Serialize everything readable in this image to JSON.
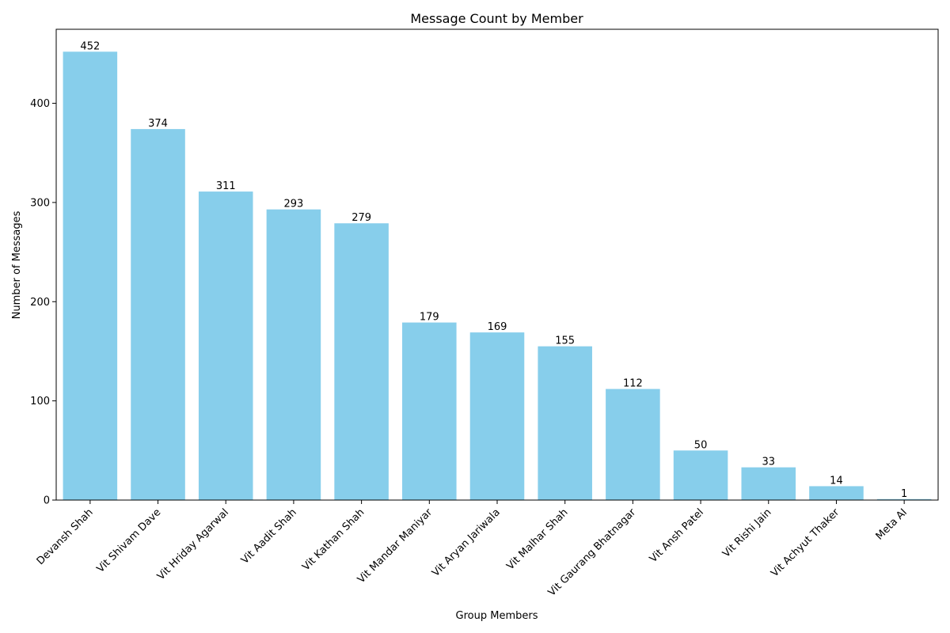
{
  "chart_data": {
    "type": "bar",
    "title": "Message Count by Member",
    "xlabel": "Group Members",
    "ylabel": "Number of Messages",
    "categories": [
      "Devansh Shah",
      "Vit Shivam Dave",
      "Vit Hriday Agarwal",
      "Vit Aadit Shah",
      "Vit Kathan Shah",
      "Vit Mandar Maniyar",
      "Vit Aryan Jariwala",
      "Vit Malhar Shah",
      "Vit Gaurang Bhatnagar",
      "Vit Ansh Patel",
      "Vit Rishi Jain",
      "Vit Achyut Thaker",
      "Meta AI"
    ],
    "values": [
      452,
      374,
      311,
      293,
      279,
      179,
      169,
      155,
      112,
      50,
      33,
      14,
      1
    ],
    "yticks": [
      0,
      100,
      200,
      300,
      400
    ],
    "ylim": [
      0,
      474.6
    ],
    "grid": false,
    "legend": "none",
    "bar_color": "#87ceeb"
  }
}
